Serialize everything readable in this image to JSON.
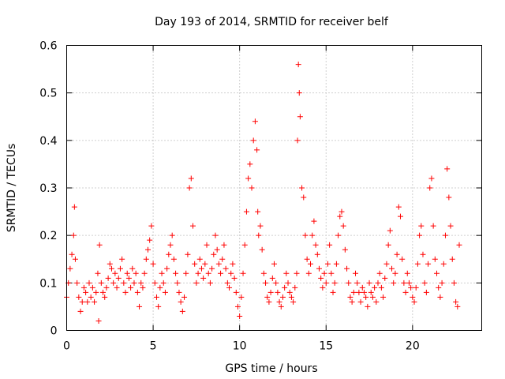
{
  "chart_data": {
    "type": "scatter",
    "title": "Day 193 of 2014, SRMTID for receiver belf",
    "xlabel": "GPS time / hours",
    "ylabel": "SRMTID / TECUs",
    "xlim": [
      0,
      24
    ],
    "ylim": [
      0,
      0.6
    ],
    "xticks": [
      0,
      5,
      10,
      15,
      20
    ],
    "xtick_labels": [
      "0",
      "5",
      "10",
      "15",
      "20"
    ],
    "yticks": [
      0,
      0.1,
      0.2,
      0.3,
      0.4,
      0.5,
      0.6
    ],
    "ytick_labels": [
      "0",
      "0.1",
      "0.2",
      "0.3",
      "0.4",
      "0.5",
      "0.6"
    ],
    "grid": true,
    "marker": "+",
    "color": "#ff0000",
    "series": [
      {
        "name": "SRMTID",
        "x": [
          0.0,
          0.1,
          0.2,
          0.3,
          0.4,
          0.45,
          0.5,
          0.6,
          0.7,
          0.8,
          0.9,
          1.0,
          1.1,
          1.2,
          1.3,
          1.4,
          1.5,
          1.6,
          1.7,
          1.8,
          1.85,
          1.9,
          2.0,
          2.1,
          2.2,
          2.3,
          2.4,
          2.5,
          2.6,
          2.7,
          2.8,
          2.9,
          3.0,
          3.1,
          3.2,
          3.3,
          3.4,
          3.5,
          3.6,
          3.7,
          3.8,
          3.9,
          4.0,
          4.1,
          4.2,
          4.3,
          4.4,
          4.5,
          4.6,
          4.7,
          4.8,
          4.9,
          5.0,
          5.1,
          5.2,
          5.3,
          5.4,
          5.5,
          5.6,
          5.7,
          5.8,
          5.9,
          6.0,
          6.1,
          6.2,
          6.3,
          6.4,
          6.5,
          6.6,
          6.7,
          6.8,
          6.9,
          7.0,
          7.1,
          7.2,
          7.3,
          7.4,
          7.5,
          7.6,
          7.7,
          7.8,
          7.9,
          8.0,
          8.1,
          8.2,
          8.3,
          8.4,
          8.5,
          8.6,
          8.7,
          8.8,
          8.9,
          9.0,
          9.1,
          9.2,
          9.3,
          9.4,
          9.5,
          9.6,
          9.7,
          9.8,
          9.9,
          10.0,
          10.1,
          10.2,
          10.3,
          10.4,
          10.5,
          10.6,
          10.7,
          10.8,
          10.9,
          11.0,
          11.05,
          11.1,
          11.2,
          11.3,
          11.4,
          11.5,
          11.6,
          11.7,
          11.8,
          11.9,
          12.0,
          12.1,
          12.2,
          12.3,
          12.4,
          12.5,
          12.6,
          12.7,
          12.8,
          12.9,
          13.0,
          13.1,
          13.2,
          13.3,
          13.35,
          13.4,
          13.45,
          13.5,
          13.6,
          13.7,
          13.8,
          13.9,
          14.0,
          14.1,
          14.2,
          14.3,
          14.4,
          14.5,
          14.6,
          14.7,
          14.8,
          14.9,
          15.0,
          15.1,
          15.2,
          15.3,
          15.4,
          15.5,
          15.6,
          15.7,
          15.8,
          15.9,
          16.0,
          16.1,
          16.2,
          16.3,
          16.4,
          16.5,
          16.6,
          16.7,
          16.8,
          16.9,
          17.0,
          17.1,
          17.2,
          17.3,
          17.4,
          17.5,
          17.6,
          17.7,
          17.8,
          17.9,
          18.0,
          18.1,
          18.2,
          18.3,
          18.4,
          18.5,
          18.6,
          18.7,
          18.8,
          18.9,
          19.0,
          19.1,
          19.2,
          19.3,
          19.4,
          19.5,
          19.6,
          19.7,
          19.8,
          19.9,
          20.0,
          20.1,
          20.2,
          20.3,
          20.4,
          20.5,
          20.6,
          20.7,
          20.8,
          20.9,
          21.0,
          21.1,
          21.2,
          21.3,
          21.4,
          21.5,
          21.6,
          21.7,
          21.8,
          21.9,
          22.0,
          22.1,
          22.2,
          22.3,
          22.4,
          22.5,
          22.6,
          22.7
        ],
        "y": [
          0.07,
          0.1,
          0.13,
          0.16,
          0.2,
          0.26,
          0.15,
          0.1,
          0.07,
          0.04,
          0.06,
          0.09,
          0.08,
          0.06,
          0.1,
          0.07,
          0.09,
          0.06,
          0.08,
          0.12,
          0.02,
          0.18,
          0.1,
          0.08,
          0.07,
          0.09,
          0.11,
          0.14,
          0.13,
          0.1,
          0.12,
          0.09,
          0.11,
          0.13,
          0.15,
          0.1,
          0.08,
          0.12,
          0.11,
          0.09,
          0.13,
          0.1,
          0.12,
          0.08,
          0.05,
          0.1,
          0.09,
          0.12,
          0.15,
          0.17,
          0.19,
          0.22,
          0.14,
          0.1,
          0.07,
          0.05,
          0.09,
          0.12,
          0.1,
          0.08,
          0.13,
          0.16,
          0.18,
          0.2,
          0.15,
          0.12,
          0.1,
          0.08,
          0.06,
          0.04,
          0.07,
          0.12,
          0.16,
          0.3,
          0.32,
          0.22,
          0.14,
          0.1,
          0.12,
          0.15,
          0.13,
          0.11,
          0.14,
          0.18,
          0.12,
          0.1,
          0.13,
          0.16,
          0.2,
          0.17,
          0.14,
          0.12,
          0.15,
          0.18,
          0.13,
          0.1,
          0.09,
          0.12,
          0.14,
          0.11,
          0.08,
          0.05,
          0.03,
          0.07,
          0.12,
          0.18,
          0.25,
          0.32,
          0.35,
          0.3,
          0.4,
          0.44,
          0.38,
          0.25,
          0.2,
          0.22,
          0.17,
          0.12,
          0.1,
          0.07,
          0.06,
          0.08,
          0.11,
          0.14,
          0.1,
          0.08,
          0.06,
          0.05,
          0.07,
          0.09,
          0.12,
          0.1,
          0.08,
          0.07,
          0.06,
          0.09,
          0.12,
          0.4,
          0.56,
          0.5,
          0.45,
          0.3,
          0.28,
          0.2,
          0.15,
          0.12,
          0.14,
          0.2,
          0.23,
          0.18,
          0.16,
          0.13,
          0.11,
          0.09,
          0.12,
          0.1,
          0.14,
          0.18,
          0.12,
          0.08,
          0.1,
          0.14,
          0.2,
          0.24,
          0.25,
          0.22,
          0.17,
          0.13,
          0.1,
          0.07,
          0.06,
          0.08,
          0.12,
          0.1,
          0.08,
          0.06,
          0.09,
          0.08,
          0.07,
          0.05,
          0.1,
          0.08,
          0.07,
          0.09,
          0.06,
          0.1,
          0.12,
          0.09,
          0.07,
          0.11,
          0.14,
          0.18,
          0.21,
          0.13,
          0.1,
          0.12,
          0.16,
          0.26,
          0.24,
          0.15,
          0.1,
          0.08,
          0.12,
          0.1,
          0.09,
          0.07,
          0.06,
          0.09,
          0.14,
          0.2,
          0.22,
          0.16,
          0.1,
          0.08,
          0.14,
          0.3,
          0.32,
          0.22,
          0.15,
          0.12,
          0.09,
          0.07,
          0.1,
          0.14,
          0.2,
          0.34,
          0.28,
          0.22,
          0.15,
          0.1,
          0.06,
          0.05,
          0.18
        ]
      }
    ]
  }
}
